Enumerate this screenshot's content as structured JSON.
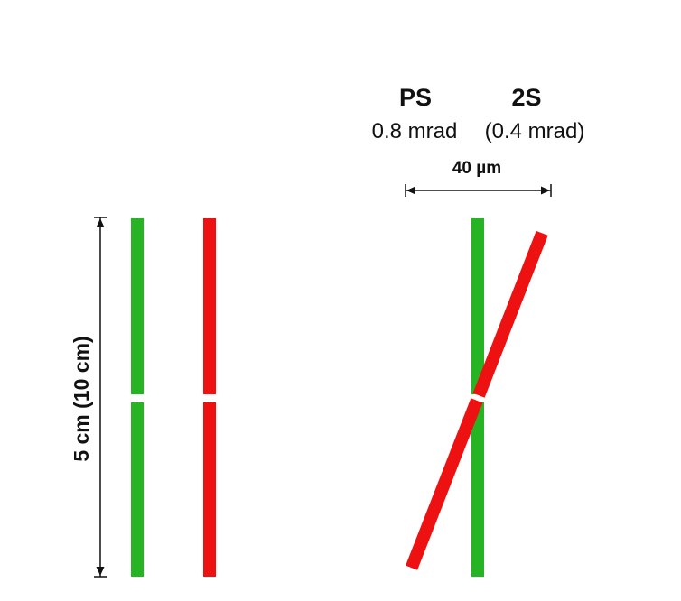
{
  "labels": {
    "ps": "PS",
    "two_s": "2S",
    "ps_angle": "0.8 mrad",
    "two_s_angle": "(0.4 mrad)",
    "separation": "40 µm",
    "length": "5 cm (10 cm)"
  },
  "colors": {
    "green_strip": "#27b424",
    "red_strip": "#ee1111",
    "arrow": "#111111",
    "text": "#111111"
  }
}
